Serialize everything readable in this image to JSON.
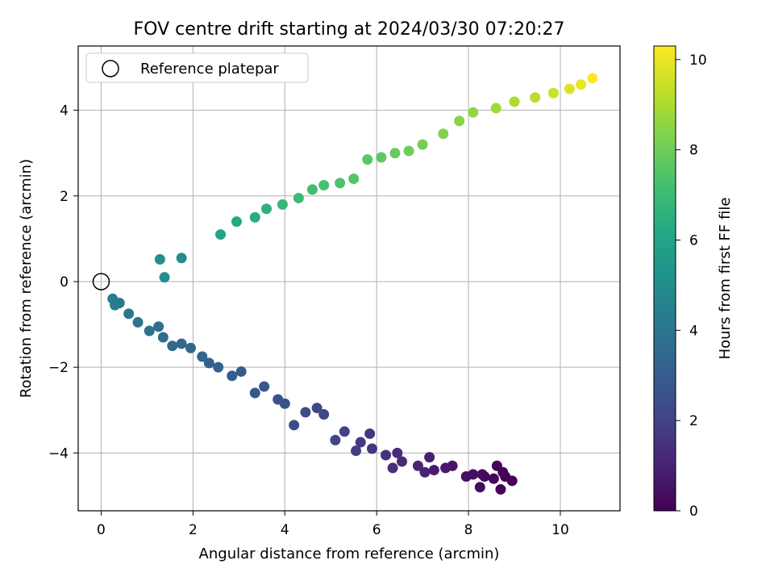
{
  "chart_data": {
    "type": "scatter",
    "title": "FOV centre drift starting at 2024/03/30 07:20:27",
    "xlabel": "Angular distance from reference (arcmin)",
    "ylabel": "Rotation from reference (arcmin)",
    "xlim": [
      -0.5,
      11.3
    ],
    "ylim": [
      -5.35,
      5.5
    ],
    "xticks": [
      0,
      2,
      4,
      6,
      8,
      10
    ],
    "yticks": [
      -4,
      -2,
      0,
      2,
      4
    ],
    "xtick_labels": [
      "0",
      "2",
      "4",
      "6",
      "8",
      "10"
    ],
    "ytick_labels": [
      "−4",
      "−2",
      "0",
      "2",
      "4"
    ],
    "grid": true,
    "colormap": "viridis",
    "colorbar": {
      "label": "Hours from first FF file",
      "range": [
        0,
        10.3
      ],
      "ticks": [
        0,
        2,
        4,
        6,
        8,
        10
      ],
      "tick_labels": [
        "0",
        "2",
        "4",
        "6",
        "8",
        "10"
      ]
    },
    "legend": {
      "position": "top-left",
      "entries": [
        {
          "label": "Reference platepar",
          "marker": "open-circle"
        }
      ]
    },
    "reference_point": {
      "x": 0,
      "y": 0
    },
    "segments": [
      {
        "description": "lower branch",
        "points": [
          [
            8.95,
            -4.65,
            0.0
          ],
          [
            8.8,
            -4.55,
            0.05
          ],
          [
            8.7,
            -4.85,
            0.08
          ],
          [
            8.62,
            -4.3,
            0.1
          ],
          [
            8.75,
            -4.45,
            0.12
          ],
          [
            8.55,
            -4.6,
            0.18
          ],
          [
            8.35,
            -4.55,
            0.25
          ],
          [
            8.25,
            -4.8,
            0.28
          ],
          [
            8.3,
            -4.5,
            0.32
          ],
          [
            8.1,
            -4.5,
            0.4
          ],
          [
            7.95,
            -4.55,
            0.5
          ],
          [
            7.65,
            -4.3,
            0.6
          ],
          [
            7.5,
            -4.35,
            0.7
          ],
          [
            7.25,
            -4.4,
            0.8
          ],
          [
            7.15,
            -4.1,
            0.9
          ],
          [
            7.05,
            -4.45,
            1.0
          ],
          [
            6.9,
            -4.3,
            1.1
          ],
          [
            6.55,
            -4.2,
            1.2
          ],
          [
            6.45,
            -4.0,
            1.3
          ],
          [
            6.35,
            -4.35,
            1.35
          ],
          [
            6.2,
            -4.05,
            1.45
          ],
          [
            5.9,
            -3.9,
            1.6
          ],
          [
            5.85,
            -3.55,
            1.7
          ],
          [
            5.65,
            -3.75,
            1.8
          ],
          [
            5.55,
            -3.95,
            1.9
          ],
          [
            5.3,
            -3.5,
            2.0
          ],
          [
            5.1,
            -3.7,
            2.1
          ],
          [
            4.85,
            -3.1,
            2.2
          ],
          [
            4.7,
            -2.95,
            2.3
          ],
          [
            4.45,
            -3.05,
            2.35
          ],
          [
            4.2,
            -3.35,
            2.45
          ],
          [
            4.0,
            -2.85,
            2.55
          ],
          [
            3.85,
            -2.75,
            2.65
          ],
          [
            3.55,
            -2.45,
            2.75
          ],
          [
            3.35,
            -2.6,
            2.85
          ],
          [
            3.05,
            -2.1,
            2.95
          ],
          [
            2.85,
            -2.2,
            3.05
          ],
          [
            2.55,
            -2.0,
            3.15
          ],
          [
            2.35,
            -1.9,
            3.2
          ],
          [
            2.2,
            -1.75,
            3.3
          ],
          [
            1.95,
            -1.55,
            3.4
          ],
          [
            1.75,
            -1.45,
            3.5
          ],
          [
            1.55,
            -1.5,
            3.6
          ],
          [
            1.35,
            -1.3,
            3.7
          ],
          [
            1.25,
            -1.05,
            3.8
          ],
          [
            1.05,
            -1.15,
            3.9
          ],
          [
            0.8,
            -0.95,
            4.0
          ],
          [
            0.6,
            -0.75,
            4.1
          ],
          [
            0.4,
            -0.5,
            4.2
          ],
          [
            0.3,
            -0.55,
            4.25
          ],
          [
            0.25,
            -0.4,
            4.3
          ]
        ]
      },
      {
        "description": "upper branch",
        "points": [
          [
            1.75,
            0.55,
            5.0
          ],
          [
            1.28,
            0.52,
            5.05
          ],
          [
            1.38,
            0.1,
            5.1
          ],
          [
            2.6,
            1.1,
            6.0
          ],
          [
            2.95,
            1.4,
            6.2
          ],
          [
            3.35,
            1.5,
            6.4
          ],
          [
            3.6,
            1.7,
            6.6
          ],
          [
            3.95,
            1.8,
            6.8
          ],
          [
            4.3,
            1.95,
            7.0
          ],
          [
            4.6,
            2.15,
            7.1
          ],
          [
            4.85,
            2.25,
            7.25
          ],
          [
            5.2,
            2.3,
            7.4
          ],
          [
            5.5,
            2.4,
            7.5
          ],
          [
            5.8,
            2.85,
            7.6
          ],
          [
            6.1,
            2.9,
            7.7
          ],
          [
            6.4,
            3.0,
            7.85
          ],
          [
            6.7,
            3.05,
            8.0
          ],
          [
            7.0,
            3.2,
            8.15
          ],
          [
            7.45,
            3.45,
            8.3
          ],
          [
            7.8,
            3.75,
            8.45
          ],
          [
            8.1,
            3.95,
            8.6
          ],
          [
            8.6,
            4.05,
            8.8
          ],
          [
            9.0,
            4.2,
            9.0
          ],
          [
            9.45,
            4.3,
            9.2
          ],
          [
            9.85,
            4.4,
            9.5
          ],
          [
            10.2,
            4.5,
            9.75
          ],
          [
            10.45,
            4.6,
            10.0
          ],
          [
            10.7,
            4.75,
            10.3
          ]
        ]
      }
    ]
  }
}
